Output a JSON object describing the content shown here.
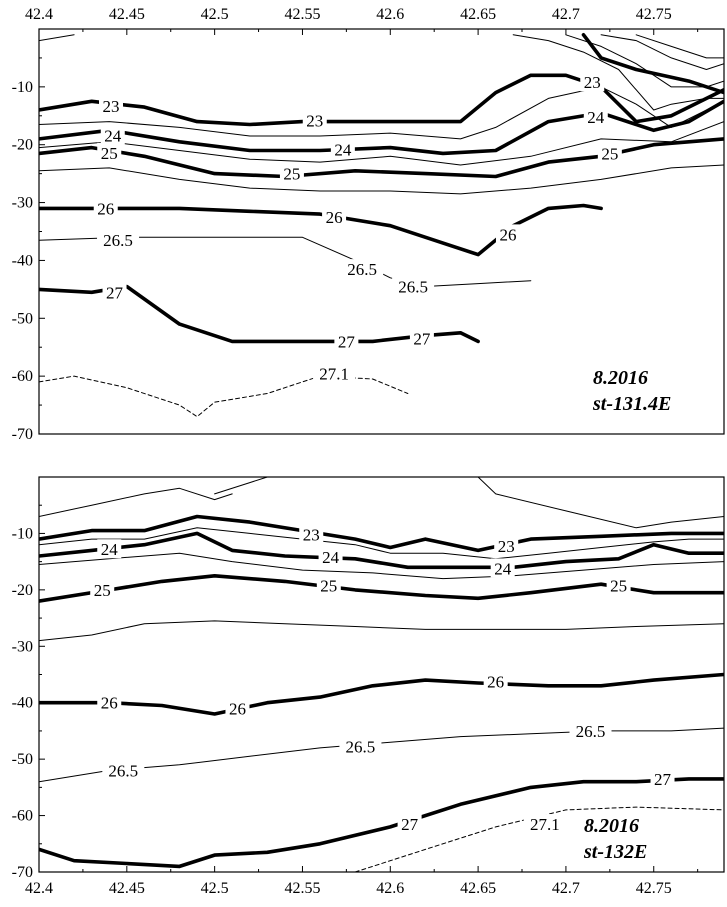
{
  "chart_data": [
    {
      "type": "line",
      "subtype": "isopycnal depth section",
      "stamp_lines": [
        "8.2016",
        "st-131.4E"
      ],
      "xlim": [
        42.4,
        42.79
      ],
      "ylim": [
        -70,
        0
      ],
      "x_ticks": [
        42.4,
        42.45,
        42.5,
        42.55,
        42.6,
        42.65,
        42.7,
        42.75
      ],
      "x_tick_labels": [
        "42.4",
        "42.45",
        "42.5",
        "42.55",
        "42.6",
        "42.65",
        "42.7",
        "42.75"
      ],
      "x_tick_position": "top",
      "y_ticks": [
        -10,
        -20,
        -30,
        -40,
        -50,
        -60,
        -70
      ],
      "y_tick_labels": [
        "-10",
        "-20",
        "-30",
        "-40",
        "-50",
        "-60",
        "-70"
      ],
      "grid": false,
      "series": [
        {
          "style": "thin",
          "x": [
            42.4,
            42.42
          ],
          "y": [
            -2,
            -1
          ]
        },
        {
          "style": "thin",
          "x": [
            42.67,
            42.69,
            42.71,
            42.73,
            42.75,
            42.76,
            42.78,
            42.79
          ],
          "y": [
            -1,
            -2,
            -4,
            -7,
            -14,
            -13,
            -12,
            -12
          ]
        },
        {
          "style": "thin",
          "x": [
            42.7,
            42.72,
            42.74,
            42.76,
            42.78,
            42.79
          ],
          "y": [
            -1,
            -3,
            -6,
            -10,
            -10,
            -9
          ]
        },
        {
          "style": "thin",
          "x": [
            42.72,
            42.74,
            42.76,
            42.78,
            42.79
          ],
          "y": [
            -1,
            -2,
            -5,
            -7,
            -6
          ]
        },
        {
          "style": "thin",
          "x": [
            42.74,
            42.76,
            42.78,
            42.79
          ],
          "y": [
            -1,
            -3,
            -5,
            -5
          ]
        },
        {
          "style": "bold",
          "x": [
            42.71,
            42.72,
            42.74,
            42.77,
            42.79
          ],
          "y": [
            -1,
            -5,
            -7,
            -9,
            -11
          ]
        },
        {
          "style": "bold",
          "name": "23",
          "x": [
            42.4,
            42.43,
            42.46,
            42.49,
            42.52,
            42.55,
            42.58,
            42.61,
            42.64,
            42.66,
            42.68,
            42.7,
            42.72,
            42.74,
            42.76,
            42.79
          ],
          "y": [
            -14,
            -12.5,
            -13.5,
            -16,
            -16.5,
            -16,
            -16,
            -16,
            -16,
            -11,
            -8,
            -8,
            -10,
            -16,
            -15,
            -10.5
          ]
        },
        {
          "style": "thin",
          "x": [
            42.4,
            42.44,
            42.48,
            42.52,
            42.56,
            42.6,
            42.64,
            42.66,
            42.69,
            42.72,
            42.74,
            42.76,
            42.79
          ],
          "y": [
            -16.5,
            -16,
            -17,
            -18.5,
            -18.5,
            -18,
            -19,
            -17,
            -12,
            -10,
            -13,
            -17,
            -12.5
          ]
        },
        {
          "style": "bold",
          "name": "24",
          "x": [
            42.4,
            42.44,
            42.48,
            42.52,
            42.56,
            42.6,
            42.63,
            42.66,
            42.69,
            42.72,
            42.75,
            42.77,
            42.79
          ],
          "y": [
            -19,
            -17.5,
            -19.5,
            -21,
            -21,
            -20.5,
            -21.5,
            -21,
            -16,
            -14.5,
            -17.5,
            -16,
            -12.5
          ]
        },
        {
          "style": "thin",
          "x": [
            42.4,
            42.44,
            42.48,
            42.52,
            42.56,
            42.6,
            42.64,
            42.68,
            42.72,
            42.76,
            42.79
          ],
          "y": [
            -20.5,
            -19.5,
            -21,
            -22.5,
            -23,
            -22,
            -23.5,
            -22,
            -19,
            -19.5,
            -16
          ]
        },
        {
          "style": "bold",
          "name": "25",
          "x": [
            42.4,
            42.43,
            42.46,
            42.5,
            42.54,
            42.58,
            42.62,
            42.66,
            42.69,
            42.72,
            42.75,
            42.79
          ],
          "y": [
            -21.5,
            -20.5,
            -22,
            -25,
            -25.5,
            -24.5,
            -25,
            -25.5,
            -23,
            -22,
            -20,
            -19
          ]
        },
        {
          "style": "thin",
          "x": [
            42.4,
            42.44,
            42.48,
            42.52,
            42.56,
            42.6,
            42.64,
            42.68,
            42.72,
            42.76,
            42.79
          ],
          "y": [
            -24.5,
            -24,
            -26,
            -27.5,
            -28,
            -28,
            -28.5,
            -27.5,
            -26,
            -24,
            -23.5
          ]
        },
        {
          "style": "bold",
          "name": "26",
          "x": [
            42.4,
            42.44,
            42.48,
            42.52,
            42.56,
            42.6,
            42.63,
            42.65,
            42.67,
            42.69,
            42.71,
            42.72
          ],
          "y": [
            -31,
            -31,
            -31,
            -31.5,
            -32,
            -34,
            -37,
            -39,
            -34,
            -31,
            -30.5,
            -31
          ]
        },
        {
          "style": "thin",
          "name": "26.5",
          "x": [
            42.4,
            42.45,
            42.5,
            42.55,
            42.58,
            42.6,
            42.62,
            42.65,
            42.68
          ],
          "y": [
            -36.5,
            -36,
            -36,
            -36,
            -40,
            -43,
            -44.5,
            -44,
            -43.5
          ]
        },
        {
          "style": "bold",
          "name": "27",
          "x": [
            42.4,
            42.43,
            42.45,
            42.48,
            42.51,
            42.55,
            42.59,
            42.62,
            42.64,
            42.65
          ],
          "y": [
            -45,
            -45.5,
            -44.5,
            -51,
            -54,
            -54,
            -54,
            -53,
            -52.5,
            -54
          ]
        },
        {
          "style": "dashed",
          "name": "27.1",
          "x": [
            42.4,
            42.42,
            42.45,
            42.48,
            42.49,
            42.5,
            42.53,
            42.56,
            42.59,
            42.61
          ],
          "y": [
            -61,
            -60,
            -62,
            -65,
            -67,
            -64.5,
            -63,
            -60,
            -60.5,
            -63
          ]
        }
      ],
      "contour_labels": [
        {
          "text": "23",
          "x": 42.441,
          "y": -13.3
        },
        {
          "text": "23",
          "x": 42.557,
          "y": -15.8
        },
        {
          "text": "23",
          "x": 42.715,
          "y": -9.2
        },
        {
          "text": "24",
          "x": 42.442,
          "y": -18.4
        },
        {
          "text": "24",
          "x": 42.573,
          "y": -20.8
        },
        {
          "text": "24",
          "x": 42.717,
          "y": -15.2
        },
        {
          "text": "25",
          "x": 42.44,
          "y": -21.4
        },
        {
          "text": "25",
          "x": 42.544,
          "y": -25.0
        },
        {
          "text": "25",
          "x": 42.725,
          "y": -21.5
        },
        {
          "text": "26",
          "x": 42.438,
          "y": -31.0
        },
        {
          "text": "26",
          "x": 42.568,
          "y": -32.5
        },
        {
          "text": "26",
          "x": 42.667,
          "y": -35.5
        },
        {
          "text": "26.5",
          "x": 42.445,
          "y": -36.5
        },
        {
          "text": "26.5",
          "x": 42.584,
          "y": -41.5
        },
        {
          "text": "26.5",
          "x": 42.613,
          "y": -44.5
        },
        {
          "text": "27",
          "x": 42.443,
          "y": -45.5
        },
        {
          "text": "27",
          "x": 42.575,
          "y": -54.0
        },
        {
          "text": "27",
          "x": 42.618,
          "y": -53.5
        },
        {
          "text": "27.1",
          "x": 42.568,
          "y": -59.5
        }
      ]
    },
    {
      "type": "line",
      "subtype": "isopycnal depth section",
      "stamp_lines": [
        "8.2016",
        "st-132E"
      ],
      "xlim": [
        42.4,
        42.79
      ],
      "ylim": [
        -70,
        0
      ],
      "x_ticks": [
        42.4,
        42.45,
        42.5,
        42.55,
        42.6,
        42.65,
        42.7,
        42.75
      ],
      "x_tick_labels": [
        "42.4",
        "42.45",
        "42.5",
        "42.55",
        "42.6",
        "42.65",
        "42.7",
        "42.75"
      ],
      "x_tick_position": "bottom",
      "y_ticks": [
        -10,
        -20,
        -30,
        -40,
        -50,
        -60,
        -70
      ],
      "y_tick_labels": [
        "-10",
        "-20",
        "-30",
        "-40",
        "-50",
        "-60",
        "-70"
      ],
      "grid": false,
      "series": [
        {
          "style": "thin",
          "x": [
            42.4,
            42.43,
            42.46,
            42.48,
            42.5,
            42.51
          ],
          "y": [
            -7,
            -5,
            -3,
            -2,
            -4,
            -3
          ]
        },
        {
          "style": "thin",
          "x": [
            42.5,
            42.52,
            42.53
          ],
          "y": [
            -3,
            -1,
            0
          ]
        },
        {
          "style": "thin",
          "x": [
            42.65,
            42.66,
            42.7,
            42.74,
            42.76,
            42.79
          ],
          "y": [
            0,
            -3,
            -6,
            -9,
            -8,
            -7
          ]
        },
        {
          "style": "bold",
          "name": "23",
          "x": [
            42.4,
            42.43,
            42.46,
            42.49,
            42.52,
            42.55,
            42.58,
            42.6,
            42.62,
            42.65,
            42.68,
            42.72,
            42.76,
            42.79
          ],
          "y": [
            -11,
            -9.5,
            -9.5,
            -7,
            -8,
            -9.5,
            -11,
            -12.5,
            -11,
            -13,
            -11,
            -10.5,
            -10,
            -10
          ]
        },
        {
          "style": "thin",
          "x": [
            42.4,
            42.43,
            42.46,
            42.49,
            42.52,
            42.55,
            42.58,
            42.6,
            42.63,
            42.66,
            42.69,
            42.72,
            42.75,
            42.77,
            42.79
          ],
          "y": [
            -12,
            -11,
            -11,
            -9,
            -10,
            -11,
            -12,
            -13.5,
            -13.5,
            -14.5,
            -13.5,
            -12.5,
            -11.5,
            -11,
            -11
          ]
        },
        {
          "style": "bold",
          "name": "24",
          "x": [
            42.4,
            42.43,
            42.46,
            42.49,
            42.51,
            42.54,
            42.58,
            42.61,
            42.64,
            42.67,
            42.7,
            42.73,
            42.75,
            42.77,
            42.79
          ],
          "y": [
            -14,
            -13,
            -12,
            -10,
            -13,
            -14,
            -14.5,
            -16,
            -16,
            -16,
            -15,
            -14.5,
            -12,
            -13.5,
            -13.5
          ]
        },
        {
          "style": "thin",
          "x": [
            42.4,
            42.44,
            42.48,
            42.51,
            42.55,
            42.59,
            42.63,
            42.67,
            42.71,
            42.75,
            42.79
          ],
          "y": [
            -15.5,
            -14.5,
            -13.5,
            -15,
            -16.5,
            -17,
            -18,
            -17.5,
            -16.5,
            -15.5,
            -15
          ]
        },
        {
          "style": "bold",
          "name": "25",
          "x": [
            42.4,
            42.44,
            42.47,
            42.5,
            42.54,
            42.58,
            42.62,
            42.65,
            42.68,
            42.72,
            42.75,
            42.79
          ],
          "y": [
            -22,
            -20,
            -18.5,
            -17.5,
            -18.5,
            -20,
            -21,
            -21.5,
            -20.5,
            -19,
            -20.5,
            -20.5
          ]
        },
        {
          "style": "thin",
          "x": [
            42.4,
            42.43,
            42.46,
            42.5,
            42.54,
            42.58,
            42.62,
            42.66,
            42.7,
            42.74,
            42.79
          ],
          "y": [
            -29,
            -28,
            -26,
            -25.5,
            -26,
            -26.5,
            -27,
            -27,
            -27,
            -26.5,
            -26
          ]
        },
        {
          "style": "bold",
          "name": "26",
          "x": [
            42.4,
            42.44,
            42.47,
            42.5,
            42.53,
            42.56,
            42.59,
            42.62,
            42.65,
            42.69,
            42.72,
            42.75,
            42.79
          ],
          "y": [
            -40,
            -40,
            -40.5,
            -42,
            -40,
            -39,
            -37,
            -36,
            -36.5,
            -37,
            -37,
            -36,
            -35
          ]
        },
        {
          "style": "thin",
          "name": "26.5",
          "x": [
            42.4,
            42.44,
            42.48,
            42.52,
            42.56,
            42.6,
            42.64,
            42.68,
            42.72,
            42.76,
            42.79
          ],
          "y": [
            -54,
            -52,
            -51,
            -49.5,
            -48,
            -47,
            -46,
            -45.5,
            -45,
            -45,
            -44.5
          ]
        },
        {
          "style": "bold",
          "name": "27",
          "x": [
            42.4,
            42.42,
            42.45,
            42.48,
            42.5,
            42.53,
            42.56,
            42.6,
            42.64,
            42.68,
            42.71,
            42.74,
            42.77,
            42.79
          ],
          "y": [
            -66,
            -68,
            -68.5,
            -69,
            -67,
            -66.5,
            -65,
            -62,
            -58,
            -55,
            -54,
            -54,
            -53.5,
            -53.5
          ]
        },
        {
          "style": "dashed",
          "name": "27.1",
          "x": [
            42.58,
            42.62,
            42.66,
            42.7,
            42.74,
            42.79
          ],
          "y": [
            -70,
            -66,
            -62,
            -59,
            -58.5,
            -59
          ]
        }
      ],
      "contour_labels": [
        {
          "text": "23",
          "x": 42.555,
          "y": -10.2
        },
        {
          "text": "23",
          "x": 42.666,
          "y": -12.2
        },
        {
          "text": "24",
          "x": 42.44,
          "y": -12.8
        },
        {
          "text": "24",
          "x": 42.566,
          "y": -14.2
        },
        {
          "text": "24",
          "x": 42.664,
          "y": -16.2
        },
        {
          "text": "25",
          "x": 42.436,
          "y": -20.0
        },
        {
          "text": "25",
          "x": 42.565,
          "y": -19.2
        },
        {
          "text": "25",
          "x": 42.73,
          "y": -19.2
        },
        {
          "text": "26",
          "x": 42.44,
          "y": -40.0
        },
        {
          "text": "26",
          "x": 42.513,
          "y": -41.0
        },
        {
          "text": "26",
          "x": 42.66,
          "y": -36.2
        },
        {
          "text": "26.5",
          "x": 42.448,
          "y": -52.0
        },
        {
          "text": "26.5",
          "x": 42.583,
          "y": -47.8
        },
        {
          "text": "26.5",
          "x": 42.714,
          "y": -45.0
        },
        {
          "text": "27",
          "x": 42.611,
          "y": -61.5
        },
        {
          "text": "27",
          "x": 42.755,
          "y": -53.5
        },
        {
          "text": "27.1",
          "x": 42.688,
          "y": -61.5
        }
      ]
    }
  ]
}
